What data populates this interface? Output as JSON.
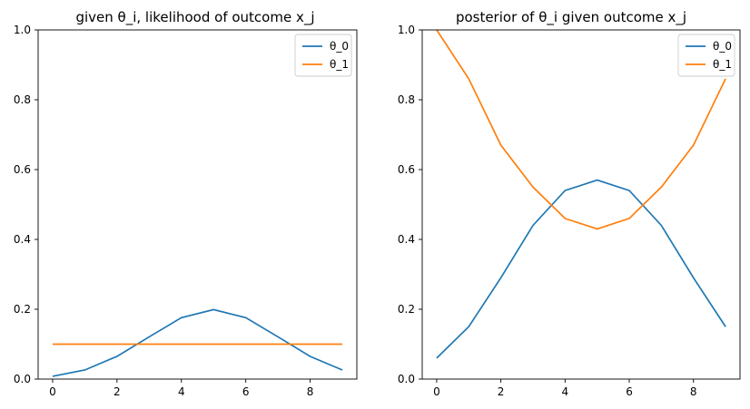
{
  "colors": {
    "theta_0": "#1f77b4",
    "theta_1": "#ff7f0e",
    "axis": "#000000",
    "legend_border": "#cccccc"
  },
  "chart_data": [
    {
      "type": "line",
      "title": "given θ_i, likelihood of outcome x_j",
      "xlabel": "",
      "ylabel": "",
      "xlim": [
        -0.45,
        9.45
      ],
      "ylim": [
        0,
        1
      ],
      "x": [
        0,
        1,
        2,
        3,
        4,
        5,
        6,
        7,
        8,
        9
      ],
      "xticks": [
        "0",
        "2",
        "4",
        "6",
        "8"
      ],
      "yticks": [
        "0.0",
        "0.2",
        "0.4",
        "0.6",
        "0.8",
        "1.0"
      ],
      "legend": "upper right",
      "grid": false,
      "series": [
        {
          "name": "θ_0",
          "values": [
            0.008,
            0.026,
            0.065,
            0.121,
            0.176,
            0.199,
            0.176,
            0.121,
            0.065,
            0.026
          ]
        },
        {
          "name": "θ_1",
          "values": [
            0.1,
            0.1,
            0.1,
            0.1,
            0.1,
            0.1,
            0.1,
            0.1,
            0.1,
            0.1
          ]
        }
      ]
    },
    {
      "type": "line",
      "title": "posterior of θ_i given outcome x_j",
      "xlabel": "",
      "ylabel": "",
      "xlim": [
        -0.45,
        9.45
      ],
      "ylim": [
        0,
        1
      ],
      "x": [
        0,
        1,
        2,
        3,
        4,
        5,
        6,
        7,
        8,
        9
      ],
      "xticks": [
        "0",
        "2",
        "4",
        "6",
        "8"
      ],
      "yticks": [
        "0.0",
        "0.2",
        "0.4",
        "0.6",
        "0.8",
        "1.0"
      ],
      "legend": "upper right",
      "grid": false,
      "series": [
        {
          "name": "θ_0",
          "values": [
            0.06,
            0.15,
            0.29,
            0.44,
            0.54,
            0.57,
            0.54,
            0.44,
            0.29,
            0.15
          ]
        },
        {
          "name": "θ_1",
          "values": [
            1.0,
            0.86,
            0.67,
            0.55,
            0.46,
            0.43,
            0.46,
            0.55,
            0.67,
            0.86
          ]
        }
      ]
    }
  ]
}
